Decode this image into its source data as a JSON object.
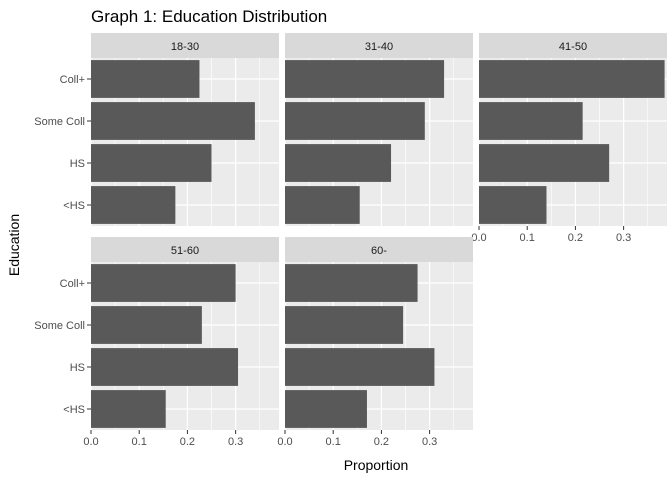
{
  "chart_data": {
    "type": "bar",
    "orientation": "horizontal",
    "title": "Graph 1: Education Distribution",
    "xlabel": "Proportion",
    "ylabel": "Education",
    "categories": [
      "<HS",
      "HS",
      "Some Coll",
      "Coll+"
    ],
    "xlim": [
      0,
      0.39
    ],
    "xticks": [
      "0.0",
      "0.1",
      "0.2",
      "0.3"
    ],
    "grid": true,
    "facet_order": "left-to-right, top-to-bottom",
    "bar_color": "#595959",
    "panel_bg": "#ebebeb",
    "strip_bg": "#d9d9d9",
    "series": [
      {
        "name": "18-30",
        "values": [
          0.175,
          0.25,
          0.34,
          0.225
        ]
      },
      {
        "name": "31-40",
        "values": [
          0.155,
          0.22,
          0.29,
          0.33
        ]
      },
      {
        "name": "41-50",
        "values": [
          0.14,
          0.27,
          0.215,
          0.385
        ]
      },
      {
        "name": "51-60",
        "values": [
          0.155,
          0.305,
          0.23,
          0.3
        ]
      },
      {
        "name": "60-",
        "values": [
          0.17,
          0.31,
          0.245,
          0.275
        ]
      }
    ]
  }
}
